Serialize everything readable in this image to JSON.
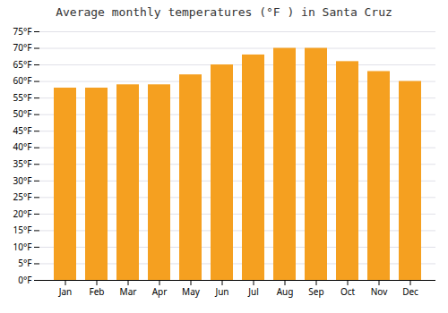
{
  "chart_data": {
    "type": "bar",
    "title": "Average monthly temperatures (°F ) in Santa Cruz",
    "categories": [
      "Jan",
      "Feb",
      "Mar",
      "Apr",
      "May",
      "Jun",
      "Jul",
      "Aug",
      "Sep",
      "Oct",
      "Nov",
      "Dec"
    ],
    "values": [
      58,
      58,
      59,
      59,
      62,
      65,
      68,
      70,
      70,
      66,
      63,
      60
    ],
    "color": "#F5A020",
    "ylim": [
      0,
      75
    ],
    "yticks": [
      {
        "value": 0,
        "label": "0°F"
      },
      {
        "value": 5,
        "label": "5°F"
      },
      {
        "value": 10,
        "label": "10°F"
      },
      {
        "value": 15,
        "label": "15°F"
      },
      {
        "value": 20,
        "label": "20°F"
      },
      {
        "value": 25,
        "label": "25°F"
      },
      {
        "value": 30,
        "label": "30°F"
      },
      {
        "value": 35,
        "label": "35°F"
      },
      {
        "value": 40,
        "label": "40°F"
      },
      {
        "value": 45,
        "label": "45°F"
      },
      {
        "value": 50,
        "label": "50°F"
      },
      {
        "value": 55,
        "label": "55°F"
      },
      {
        "value": 60,
        "label": "60°F"
      },
      {
        "value": 65,
        "label": "65°F"
      },
      {
        "value": 70,
        "label": "70°F"
      },
      {
        "value": 75,
        "label": "75°F"
      }
    ],
    "grid": true
  }
}
